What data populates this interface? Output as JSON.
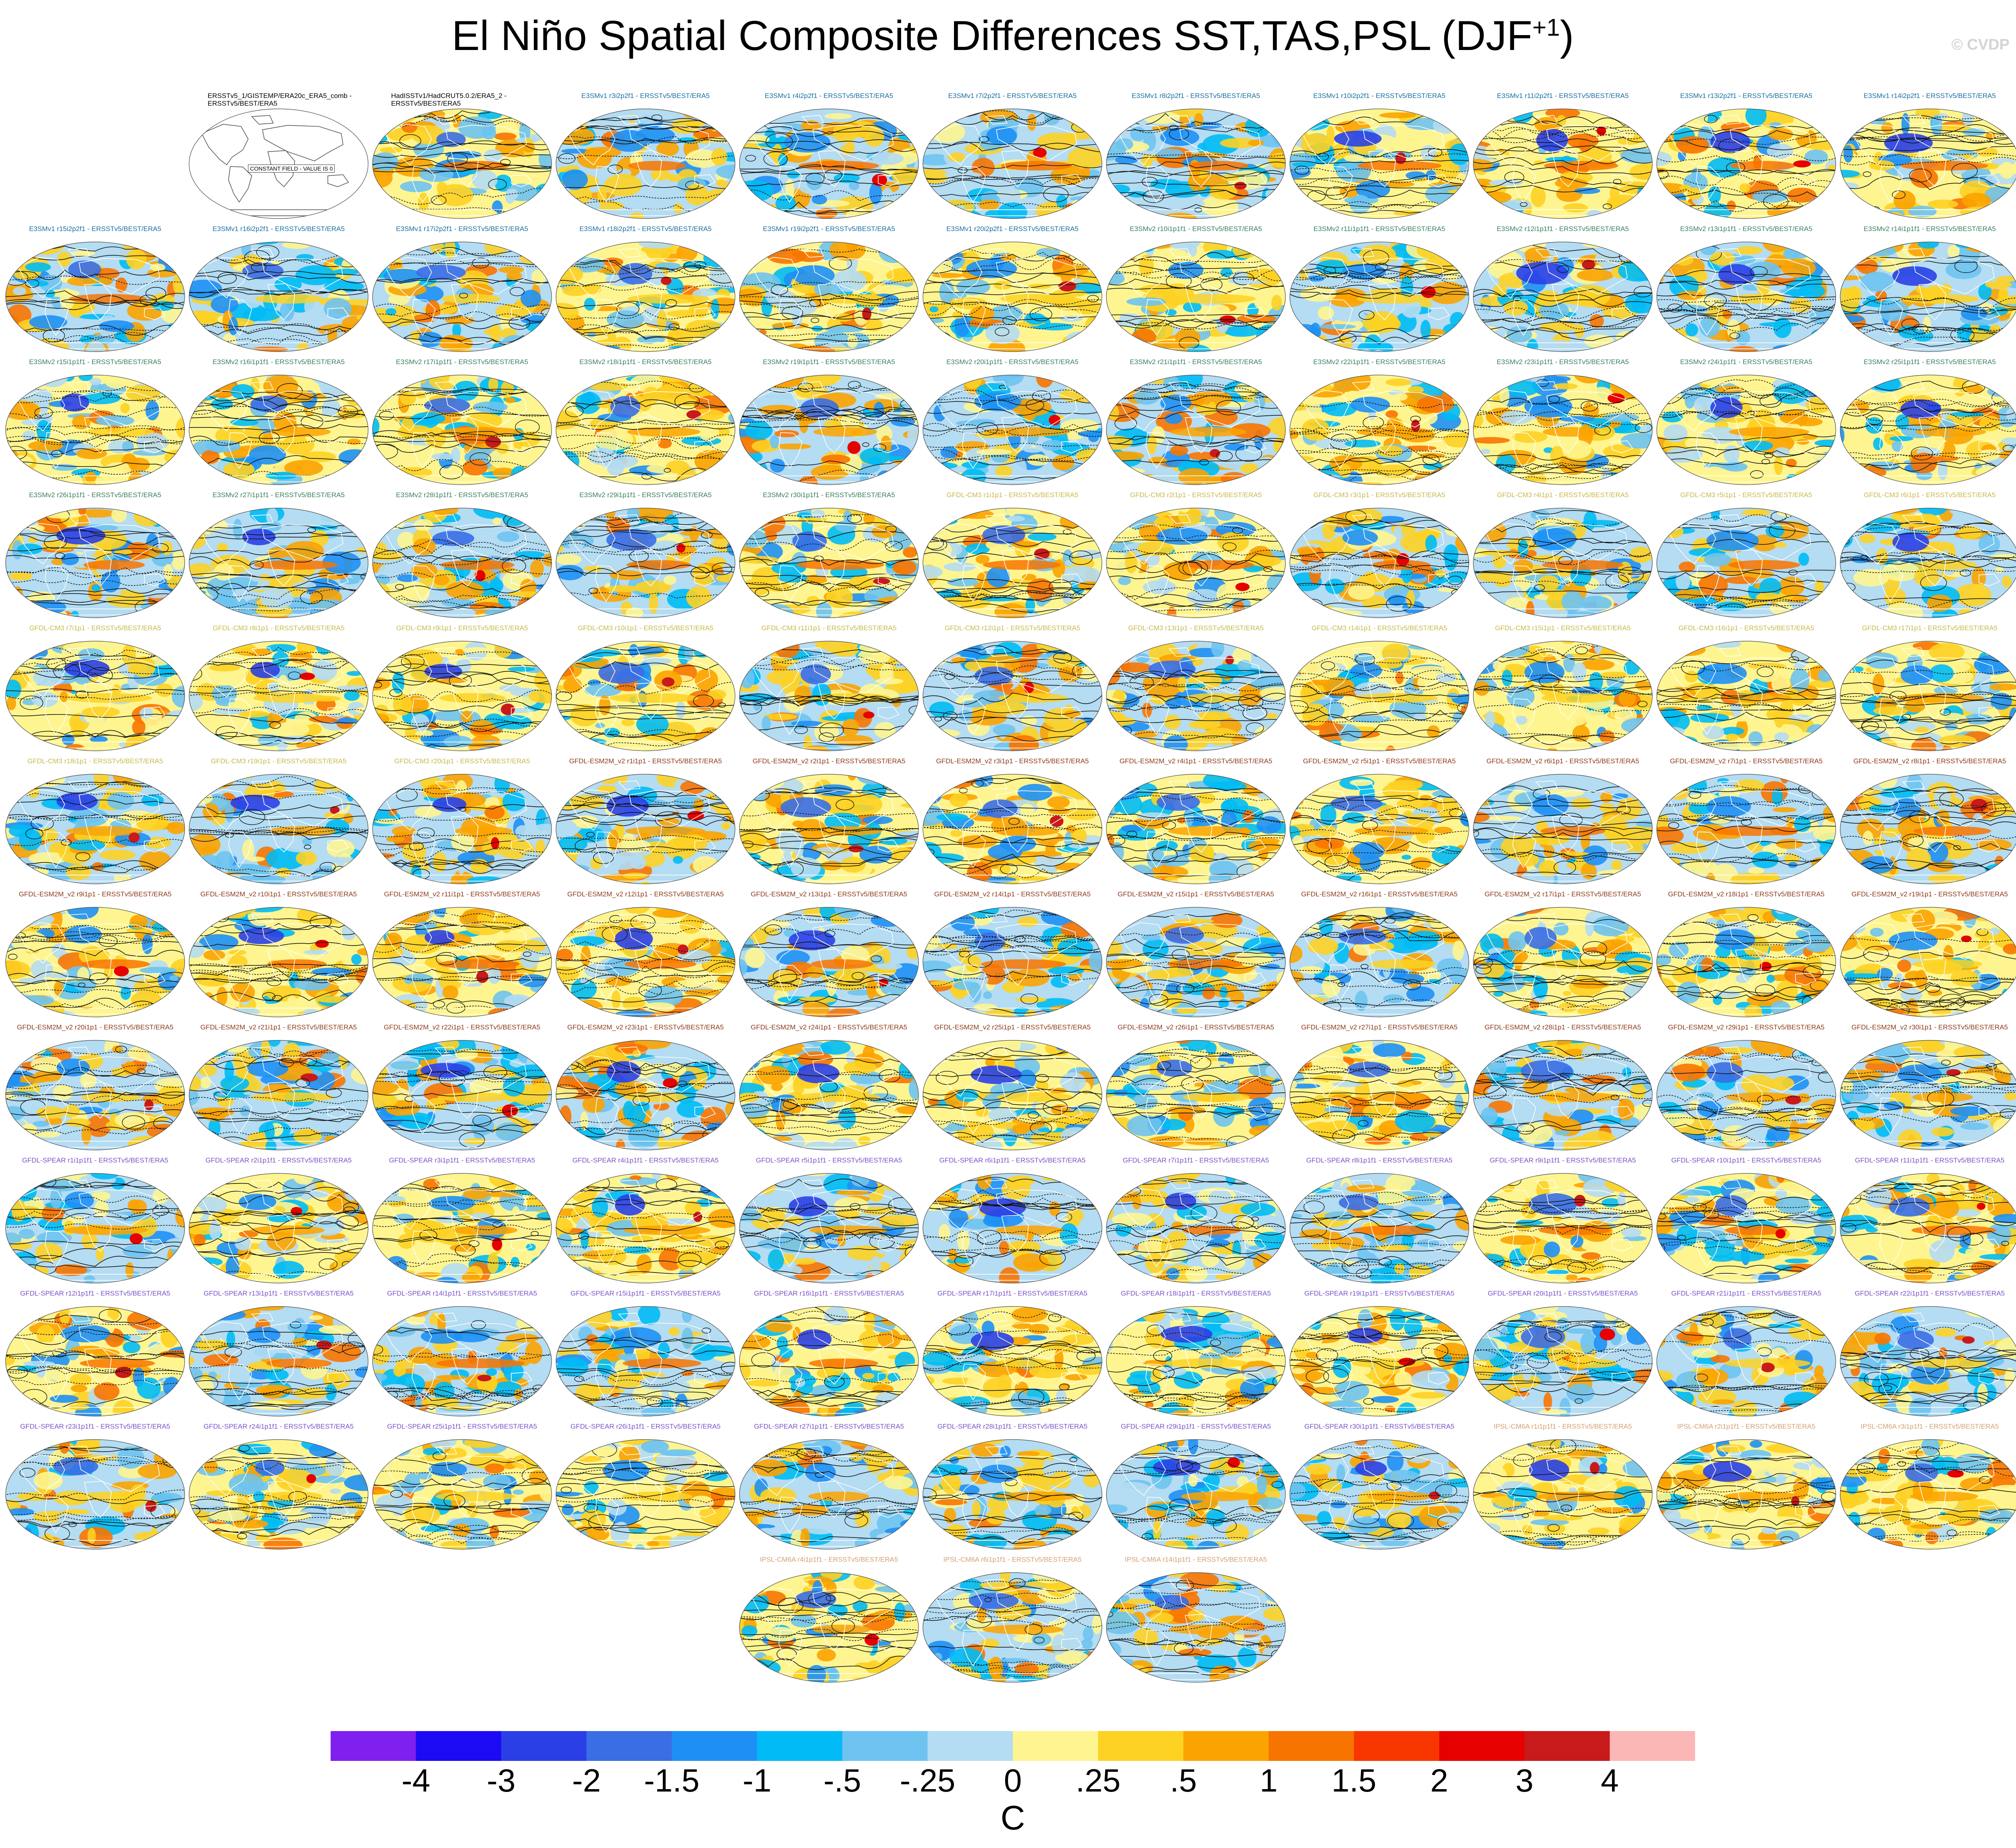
{
  "title": "El Niño Spatial Composite Differences SST,TAS,PSL (DJF",
  "title_sup": "+1",
  "title_end": ")",
  "watermark": "© CVDP",
  "model_colors": {
    "E3SMv1": "#1a6ea0",
    "E3SMv2": "#3a7f5c",
    "GFDL-CM3": "#c8b84a",
    "GFDL-ESM2M_v2": "#8b3a1a",
    "GFDL-SPEAR": "#7a52c8",
    "IPSL-CM6A": "#d4a070",
    "obs": "#000000"
  },
  "panels": [
    {
      "label": "ERSSTv5_1/GISTEMP/ERA20c_ERA5_comb - ERSSTv5/BEST/ERA5",
      "group": "obs",
      "constant_field": "CONSTANT FIELD - VALUE IS 0"
    },
    {
      "label": "HadISSTv1/HadCRUT5.0.2/ERA5_2 - ERSSTv5/BEST/ERA5",
      "group": "obs"
    },
    {
      "label": "E3SMv1 r3i2p2f1 - ERSSTv5/BEST/ERA5",
      "group": "E3SMv1"
    },
    {
      "label": "E3SMv1 r4i2p2f1 - ERSSTv5/BEST/ERA5",
      "group": "E3SMv1"
    },
    {
      "label": "E3SMv1 r7i2p2f1 - ERSSTv5/BEST/ERA5",
      "group": "E3SMv1"
    },
    {
      "label": "E3SMv1 r8i2p2f1 - ERSSTv5/BEST/ERA5",
      "group": "E3SMv1"
    },
    {
      "label": "E3SMv1 r10i2p2f1 - ERSSTv5/BEST/ERA5",
      "group": "E3SMv1"
    },
    {
      "label": "E3SMv1 r11i2p2f1 - ERSSTv5/BEST/ERA5",
      "group": "E3SMv1"
    },
    {
      "label": "E3SMv1 r13i2p2f1 - ERSSTv5/BEST/ERA5",
      "group": "E3SMv1"
    },
    {
      "label": "E3SMv1 r14i2p2f1 - ERSSTv5/BEST/ERA5",
      "group": "E3SMv1"
    },
    {
      "label": "E3SMv1 r15i2p2f1 - ERSSTv5/BEST/ERA5",
      "group": "E3SMv1"
    },
    {
      "label": "E3SMv1 r16i2p2f1 - ERSSTv5/BEST/ERA5",
      "group": "E3SMv1"
    },
    {
      "label": "E3SMv1 r17i2p2f1 - ERSSTv5/BEST/ERA5",
      "group": "E3SMv1"
    },
    {
      "label": "E3SMv1 r18i2p2f1 - ERSSTv5/BEST/ERA5",
      "group": "E3SMv1"
    },
    {
      "label": "E3SMv1 r19i2p2f1 - ERSSTv5/BEST/ERA5",
      "group": "E3SMv1"
    },
    {
      "label": "E3SMv1 r20i2p2f1 - ERSSTv5/BEST/ERA5",
      "group": "E3SMv1"
    },
    {
      "label": "E3SMv2 r10i1p1f1 - ERSSTv5/BEST/ERA5",
      "group": "E3SMv2"
    },
    {
      "label": "E3SMv2 r11i1p1f1 - ERSSTv5/BEST/ERA5",
      "group": "E3SMv2"
    },
    {
      "label": "E3SMv2 r12i1p1f1 - ERSSTv5/BEST/ERA5",
      "group": "E3SMv2"
    },
    {
      "label": "E3SMv2 r13i1p1f1 - ERSSTv5/BEST/ERA5",
      "group": "E3SMv2"
    },
    {
      "label": "E3SMv2 r14i1p1f1 - ERSSTv5/BEST/ERA5",
      "group": "E3SMv2"
    },
    {
      "label": "E3SMv2 r15i1p1f1 - ERSSTv5/BEST/ERA5",
      "group": "E3SMv2"
    },
    {
      "label": "E3SMv2 r16i1p1f1 - ERSSTv5/BEST/ERA5",
      "group": "E3SMv2"
    },
    {
      "label": "E3SMv2 r17i1p1f1 - ERSSTv5/BEST/ERA5",
      "group": "E3SMv2"
    },
    {
      "label": "E3SMv2 r18i1p1f1 - ERSSTv5/BEST/ERA5",
      "group": "E3SMv2"
    },
    {
      "label": "E3SMv2 r19i1p1f1 - ERSSTv5/BEST/ERA5",
      "group": "E3SMv2"
    },
    {
      "label": "E3SMv2 r20i1p1f1 - ERSSTv5/BEST/ERA5",
      "group": "E3SMv2"
    },
    {
      "label": "E3SMv2 r21i1p1f1 - ERSSTv5/BEST/ERA5",
      "group": "E3SMv2"
    },
    {
      "label": "E3SMv2 r22i1p1f1 - ERSSTv5/BEST/ERA5",
      "group": "E3SMv2"
    },
    {
      "label": "E3SMv2 r23i1p1f1 - ERSSTv5/BEST/ERA5",
      "group": "E3SMv2"
    },
    {
      "label": "E3SMv2 r24i1p1f1 - ERSSTv5/BEST/ERA5",
      "group": "E3SMv2"
    },
    {
      "label": "E3SMv2 r25i1p1f1 - ERSSTv5/BEST/ERA5",
      "group": "E3SMv2"
    },
    {
      "label": "E3SMv2 r26i1p1f1 - ERSSTv5/BEST/ERA5",
      "group": "E3SMv2"
    },
    {
      "label": "E3SMv2 r27i1p1f1 - ERSSTv5/BEST/ERA5",
      "group": "E3SMv2"
    },
    {
      "label": "E3SMv2 r28i1p1f1 - ERSSTv5/BEST/ERA5",
      "group": "E3SMv2"
    },
    {
      "label": "E3SMv2 r29i1p1f1 - ERSSTv5/BEST/ERA5",
      "group": "E3SMv2"
    },
    {
      "label": "E3SMv2 r30i1p1f1 - ERSSTv5/BEST/ERA5",
      "group": "E3SMv2"
    },
    {
      "label": "GFDL-CM3 r1i1p1 - ERSSTv5/BEST/ERA5",
      "group": "GFDL-CM3"
    },
    {
      "label": "GFDL-CM3 r2i1p1 - ERSSTv5/BEST/ERA5",
      "group": "GFDL-CM3"
    },
    {
      "label": "GFDL-CM3 r3i1p1 - ERSSTv5/BEST/ERA5",
      "group": "GFDL-CM3"
    },
    {
      "label": "GFDL-CM3 r4i1p1 - ERSSTv5/BEST/ERA5",
      "group": "GFDL-CM3"
    },
    {
      "label": "GFDL-CM3 r5i1p1 - ERSSTv5/BEST/ERA5",
      "group": "GFDL-CM3"
    },
    {
      "label": "GFDL-CM3 r6i1p1 - ERSSTv5/BEST/ERA5",
      "group": "GFDL-CM3"
    },
    {
      "label": "GFDL-CM3 r7i1p1 - ERSSTv5/BEST/ERA5",
      "group": "GFDL-CM3"
    },
    {
      "label": "GFDL-CM3 r8i1p1 - ERSSTv5/BEST/ERA5",
      "group": "GFDL-CM3"
    },
    {
      "label": "GFDL-CM3 r9i1p1 - ERSSTv5/BEST/ERA5",
      "group": "GFDL-CM3"
    },
    {
      "label": "GFDL-CM3 r10i1p1 - ERSSTv5/BEST/ERA5",
      "group": "GFDL-CM3"
    },
    {
      "label": "GFDL-CM3 r11i1p1 - ERSSTv5/BEST/ERA5",
      "group": "GFDL-CM3"
    },
    {
      "label": "GFDL-CM3 r12i1p1 - ERSSTv5/BEST/ERA5",
      "group": "GFDL-CM3"
    },
    {
      "label": "GFDL-CM3 r13i1p1 - ERSSTv5/BEST/ERA5",
      "group": "GFDL-CM3"
    },
    {
      "label": "GFDL-CM3 r14i1p1 - ERSSTv5/BEST/ERA5",
      "group": "GFDL-CM3"
    },
    {
      "label": "GFDL-CM3 r15i1p1 - ERSSTv5/BEST/ERA5",
      "group": "GFDL-CM3"
    },
    {
      "label": "GFDL-CM3 r16i1p1 - ERSSTv5/BEST/ERA5",
      "group": "GFDL-CM3"
    },
    {
      "label": "GFDL-CM3 r17i1p1 - ERSSTv5/BEST/ERA5",
      "group": "GFDL-CM3"
    },
    {
      "label": "GFDL-CM3 r18i1p1 - ERSSTv5/BEST/ERA5",
      "group": "GFDL-CM3"
    },
    {
      "label": "GFDL-CM3 r19i1p1 - ERSSTv5/BEST/ERA5",
      "group": "GFDL-CM3"
    },
    {
      "label": "GFDL-CM3 r20i1p1 - ERSSTv5/BEST/ERA5",
      "group": "GFDL-CM3"
    },
    {
      "label": "GFDL-ESM2M_v2 r1i1p1 - ERSSTv5/BEST/ERA5",
      "group": "GFDL-ESM2M_v2"
    },
    {
      "label": "GFDL-ESM2M_v2 r2i1p1 - ERSSTv5/BEST/ERA5",
      "group": "GFDL-ESM2M_v2"
    },
    {
      "label": "GFDL-ESM2M_v2 r3i1p1 - ERSSTv5/BEST/ERA5",
      "group": "GFDL-ESM2M_v2"
    },
    {
      "label": "GFDL-ESM2M_v2 r4i1p1 - ERSSTv5/BEST/ERA5",
      "group": "GFDL-ESM2M_v2"
    },
    {
      "label": "GFDL-ESM2M_v2 r5i1p1 - ERSSTv5/BEST/ERA5",
      "group": "GFDL-ESM2M_v2"
    },
    {
      "label": "GFDL-ESM2M_v2 r6i1p1 - ERSSTv5/BEST/ERA5",
      "group": "GFDL-ESM2M_v2"
    },
    {
      "label": "GFDL-ESM2M_v2 r7i1p1 - ERSSTv5/BEST/ERA5",
      "group": "GFDL-ESM2M_v2"
    },
    {
      "label": "GFDL-ESM2M_v2 r8i1p1 - ERSSTv5/BEST/ERA5",
      "group": "GFDL-ESM2M_v2"
    },
    {
      "label": "GFDL-ESM2M_v2 r9i1p1 - ERSSTv5/BEST/ERA5",
      "group": "GFDL-ESM2M_v2"
    },
    {
      "label": "GFDL-ESM2M_v2 r10i1p1 - ERSSTv5/BEST/ERA5",
      "group": "GFDL-ESM2M_v2"
    },
    {
      "label": "GFDL-ESM2M_v2 r11i1p1 - ERSSTv5/BEST/ERA5",
      "group": "GFDL-ESM2M_v2"
    },
    {
      "label": "GFDL-ESM2M_v2 r12i1p1 - ERSSTv5/BEST/ERA5",
      "group": "GFDL-ESM2M_v2"
    },
    {
      "label": "GFDL-ESM2M_v2 r13i1p1 - ERSSTv5/BEST/ERA5",
      "group": "GFDL-ESM2M_v2"
    },
    {
      "label": "GFDL-ESM2M_v2 r14i1p1 - ERSSTv5/BEST/ERA5",
      "group": "GFDL-ESM2M_v2"
    },
    {
      "label": "GFDL-ESM2M_v2 r15i1p1 - ERSSTv5/BEST/ERA5",
      "group": "GFDL-ESM2M_v2"
    },
    {
      "label": "GFDL-ESM2M_v2 r16i1p1 - ERSSTv5/BEST/ERA5",
      "group": "GFDL-ESM2M_v2"
    },
    {
      "label": "GFDL-ESM2M_v2 r17i1p1 - ERSSTv5/BEST/ERA5",
      "group": "GFDL-ESM2M_v2"
    },
    {
      "label": "GFDL-ESM2M_v2 r18i1p1 - ERSSTv5/BEST/ERA5",
      "group": "GFDL-ESM2M_v2"
    },
    {
      "label": "GFDL-ESM2M_v2 r19i1p1 - ERSSTv5/BEST/ERA5",
      "group": "GFDL-ESM2M_v2"
    },
    {
      "label": "GFDL-ESM2M_v2 r20i1p1 - ERSSTv5/BEST/ERA5",
      "group": "GFDL-ESM2M_v2"
    },
    {
      "label": "GFDL-ESM2M_v2 r21i1p1 - ERSSTv5/BEST/ERA5",
      "group": "GFDL-ESM2M_v2"
    },
    {
      "label": "GFDL-ESM2M_v2 r22i1p1 - ERSSTv5/BEST/ERA5",
      "group": "GFDL-ESM2M_v2"
    },
    {
      "label": "GFDL-ESM2M_v2 r23i1p1 - ERSSTv5/BEST/ERA5",
      "group": "GFDL-ESM2M_v2"
    },
    {
      "label": "GFDL-ESM2M_v2 r24i1p1 - ERSSTv5/BEST/ERA5",
      "group": "GFDL-ESM2M_v2"
    },
    {
      "label": "GFDL-ESM2M_v2 r25i1p1 - ERSSTv5/BEST/ERA5",
      "group": "GFDL-ESM2M_v2"
    },
    {
      "label": "GFDL-ESM2M_v2 r26i1p1 - ERSSTv5/BEST/ERA5",
      "group": "GFDL-ESM2M_v2"
    },
    {
      "label": "GFDL-ESM2M_v2 r27i1p1 - ERSSTv5/BEST/ERA5",
      "group": "GFDL-ESM2M_v2"
    },
    {
      "label": "GFDL-ESM2M_v2 r28i1p1 - ERSSTv5/BEST/ERA5",
      "group": "GFDL-ESM2M_v2"
    },
    {
      "label": "GFDL-ESM2M_v2 r29i1p1 - ERSSTv5/BEST/ERA5",
      "group": "GFDL-ESM2M_v2"
    },
    {
      "label": "GFDL-ESM2M_v2 r30i1p1 - ERSSTv5/BEST/ERA5",
      "group": "GFDL-ESM2M_v2"
    },
    {
      "label": "GFDL-SPEAR r1i1p1f1 - ERSSTv5/BEST/ERA5",
      "group": "GFDL-SPEAR"
    },
    {
      "label": "GFDL-SPEAR r2i1p1f1 - ERSSTv5/BEST/ERA5",
      "group": "GFDL-SPEAR"
    },
    {
      "label": "GFDL-SPEAR r3i1p1f1 - ERSSTv5/BEST/ERA5",
      "group": "GFDL-SPEAR"
    },
    {
      "label": "GFDL-SPEAR r4i1p1f1 - ERSSTv5/BEST/ERA5",
      "group": "GFDL-SPEAR"
    },
    {
      "label": "GFDL-SPEAR r5i1p1f1 - ERSSTv5/BEST/ERA5",
      "group": "GFDL-SPEAR"
    },
    {
      "label": "GFDL-SPEAR r6i1p1f1 - ERSSTv5/BEST/ERA5",
      "group": "GFDL-SPEAR"
    },
    {
      "label": "GFDL-SPEAR r7i1p1f1 - ERSSTv5/BEST/ERA5",
      "group": "GFDL-SPEAR"
    },
    {
      "label": "GFDL-SPEAR r8i1p1f1 - ERSSTv5/BEST/ERA5",
      "group": "GFDL-SPEAR"
    },
    {
      "label": "GFDL-SPEAR r9i1p1f1 - ERSSTv5/BEST/ERA5",
      "group": "GFDL-SPEAR"
    },
    {
      "label": "GFDL-SPEAR r10i1p1f1 - ERSSTv5/BEST/ERA5",
      "group": "GFDL-SPEAR"
    },
    {
      "label": "GFDL-SPEAR r11i1p1f1 - ERSSTv5/BEST/ERA5",
      "group": "GFDL-SPEAR"
    },
    {
      "label": "GFDL-SPEAR r12i1p1f1 - ERSSTv5/BEST/ERA5",
      "group": "GFDL-SPEAR"
    },
    {
      "label": "GFDL-SPEAR r13i1p1f1 - ERSSTv5/BEST/ERA5",
      "group": "GFDL-SPEAR"
    },
    {
      "label": "GFDL-SPEAR r14i1p1f1 - ERSSTv5/BEST/ERA5",
      "group": "GFDL-SPEAR"
    },
    {
      "label": "GFDL-SPEAR r15i1p1f1 - ERSSTv5/BEST/ERA5",
      "group": "GFDL-SPEAR"
    },
    {
      "label": "GFDL-SPEAR r16i1p1f1 - ERSSTv5/BEST/ERA5",
      "group": "GFDL-SPEAR"
    },
    {
      "label": "GFDL-SPEAR r17i1p1f1 - ERSSTv5/BEST/ERA5",
      "group": "GFDL-SPEAR"
    },
    {
      "label": "GFDL-SPEAR r18i1p1f1 - ERSSTv5/BEST/ERA5",
      "group": "GFDL-SPEAR"
    },
    {
      "label": "GFDL-SPEAR r19i1p1f1 - ERSSTv5/BEST/ERA5",
      "group": "GFDL-SPEAR"
    },
    {
      "label": "GFDL-SPEAR r20i1p1f1 - ERSSTv5/BEST/ERA5",
      "group": "GFDL-SPEAR"
    },
    {
      "label": "GFDL-SPEAR r21i1p1f1 - ERSSTv5/BEST/ERA5",
      "group": "GFDL-SPEAR"
    },
    {
      "label": "GFDL-SPEAR r22i1p1f1 - ERSSTv5/BEST/ERA5",
      "group": "GFDL-SPEAR"
    },
    {
      "label": "GFDL-SPEAR r23i1p1f1 - ERSSTv5/BEST/ERA5",
      "group": "GFDL-SPEAR"
    },
    {
      "label": "GFDL-SPEAR r24i1p1f1 - ERSSTv5/BEST/ERA5",
      "group": "GFDL-SPEAR"
    },
    {
      "label": "GFDL-SPEAR r25i1p1f1 - ERSSTv5/BEST/ERA5",
      "group": "GFDL-SPEAR"
    },
    {
      "label": "GFDL-SPEAR r26i1p1f1 - ERSSTv5/BEST/ERA5",
      "group": "GFDL-SPEAR"
    },
    {
      "label": "GFDL-SPEAR r27i1p1f1 - ERSSTv5/BEST/ERA5",
      "group": "GFDL-SPEAR"
    },
    {
      "label": "GFDL-SPEAR r28i1p1f1 - ERSSTv5/BEST/ERA5",
      "group": "GFDL-SPEAR"
    },
    {
      "label": "GFDL-SPEAR r29i1p1f1 - ERSSTv5/BEST/ERA5",
      "group": "GFDL-SPEAR"
    },
    {
      "label": "GFDL-SPEAR r30i1p1f1 - ERSSTv5/BEST/ERA5",
      "group": "GFDL-SPEAR"
    },
    {
      "label": "IPSL-CM6A r1i1p1f1 - ERSSTv5/BEST/ERA5",
      "group": "IPSL-CM6A"
    },
    {
      "label": "IPSL-CM6A r2i1p1f1 - ERSSTv5/BEST/ERA5",
      "group": "IPSL-CM6A"
    },
    {
      "label": "IPSL-CM6A r3i1p1f1 - ERSSTv5/BEST/ERA5",
      "group": "IPSL-CM6A"
    },
    {
      "label": "IPSL-CM6A r4i1p1f1 - ERSSTv5/BEST/ERA5",
      "group": "IPSL-CM6A"
    },
    {
      "label": "IPSL-CM6A r6i1p1f1 - ERSSTv5/BEST/ERA5",
      "group": "IPSL-CM6A"
    },
    {
      "label": "IPSL-CM6A r14i1p1f1 - ERSSTv5/BEST/ERA5",
      "group": "IPSL-CM6A"
    }
  ],
  "chart_data": {
    "type": "heatmap",
    "title": "El Niño Spatial Composite Differences SST,TAS,PSL (DJF+1)",
    "colorbar": {
      "units": "C",
      "tick_labels": [
        "-4",
        "-3",
        "-2",
        "-1.5",
        "-1",
        "-.5",
        "-.25",
        "0",
        ".25",
        ".5",
        "1",
        "1.5",
        "2",
        "3",
        "4"
      ],
      "bin_colors": [
        "#7f20ee",
        "#1c0af5",
        "#2a40e6",
        "#3a6ee4",
        "#1e90f5",
        "#00bbf5",
        "#6ec3f0",
        "#b4dcf2",
        "#fef590",
        "#fdd223",
        "#fba300",
        "#f87400",
        "#f83700",
        "#e60000",
        "#c81a1a",
        "#fbb6b6"
      ]
    }
  }
}
